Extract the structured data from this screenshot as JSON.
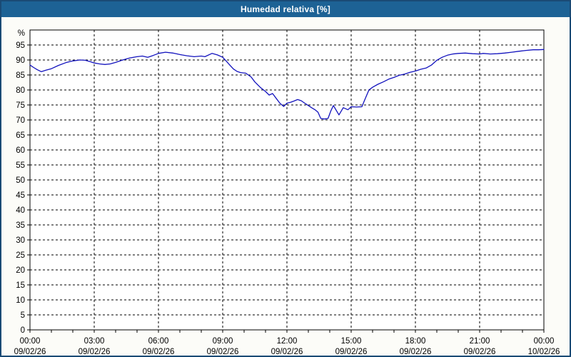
{
  "title": "Humedad relativa [%]",
  "colors": {
    "titlebar_bg": "#1d6295",
    "titlebar_text": "#ffffff",
    "window_bg": "#fcfcf8",
    "window_border": "#1a4a75",
    "plot_bg": "#ffffff",
    "plot_border": "#000000",
    "grid": "#000000",
    "axis_text": "#000000",
    "line": "#1212bd"
  },
  "chart_data": {
    "type": "line",
    "title": "Humedad relativa [%]",
    "y_unit_label": "%",
    "ylim": [
      0,
      100
    ],
    "y_tick_step": 5,
    "y_ticks": [
      0,
      5,
      10,
      15,
      20,
      25,
      30,
      35,
      40,
      45,
      50,
      55,
      60,
      65,
      70,
      75,
      80,
      85,
      90,
      95
    ],
    "x_range_hours": [
      0,
      24
    ],
    "x_minor_tick_hours": 1,
    "x_major_ticks": [
      {
        "hour": 0,
        "time": "00:00",
        "date": "09/02/26"
      },
      {
        "hour": 3,
        "time": "03:00",
        "date": "09/02/26"
      },
      {
        "hour": 6,
        "time": "06:00",
        "date": "09/02/26"
      },
      {
        "hour": 9,
        "time": "09:00",
        "date": "09/02/26"
      },
      {
        "hour": 12,
        "time": "12:00",
        "date": "09/02/26"
      },
      {
        "hour": 15,
        "time": "15:00",
        "date": "09/02/26"
      },
      {
        "hour": 18,
        "time": "18:00",
        "date": "09/02/26"
      },
      {
        "hour": 21,
        "time": "21:00",
        "date": "09/02/26"
      },
      {
        "hour": 24,
        "time": "00:00",
        "date": "10/02/26"
      }
    ],
    "grid": {
      "horizontal": "dashed every 5%",
      "vertical": "dashed every 3h"
    },
    "legend": "none",
    "series": [
      {
        "name": "Humedad relativa",
        "color": "#1212bd",
        "points_hour_value": [
          [
            0,
            88.3
          ],
          [
            0.17,
            87.5
          ],
          [
            0.33,
            86.8
          ],
          [
            0.53,
            86.1
          ],
          [
            0.75,
            86.6
          ],
          [
            1,
            87.1
          ],
          [
            1.33,
            88.2
          ],
          [
            1.67,
            89.1
          ],
          [
            2,
            89.7
          ],
          [
            2.33,
            90
          ],
          [
            2.58,
            89.9
          ],
          [
            2.83,
            89.4
          ],
          [
            3,
            89
          ],
          [
            3.25,
            88.7
          ],
          [
            3.5,
            88.5
          ],
          [
            3.75,
            88.7
          ],
          [
            4,
            89.2
          ],
          [
            4.33,
            90
          ],
          [
            4.67,
            90.7
          ],
          [
            5,
            91.1
          ],
          [
            5.25,
            91.3
          ],
          [
            5.5,
            90.9
          ],
          [
            5.75,
            91.5
          ],
          [
            6,
            92.2
          ],
          [
            6.33,
            92.6
          ],
          [
            6.67,
            92.3
          ],
          [
            7,
            91.8
          ],
          [
            7.33,
            91.4
          ],
          [
            7.67,
            91.1
          ],
          [
            8,
            91.3
          ],
          [
            8.17,
            91.1
          ],
          [
            8.5,
            92.2
          ],
          [
            8.75,
            91.7
          ],
          [
            9,
            90.9
          ],
          [
            9.17,
            89.6
          ],
          [
            9.33,
            88.3
          ],
          [
            9.5,
            87
          ],
          [
            9.67,
            86.2
          ],
          [
            9.83,
            85.8
          ],
          [
            10.08,
            85.6
          ],
          [
            10.33,
            84.3
          ],
          [
            10.5,
            82.7
          ],
          [
            10.75,
            80.9
          ],
          [
            11,
            79.5
          ],
          [
            11.17,
            78.3
          ],
          [
            11.33,
            78.8
          ],
          [
            11.5,
            77.2
          ],
          [
            11.67,
            75.6
          ],
          [
            11.85,
            74.5
          ],
          [
            12,
            75.6
          ],
          [
            12.17,
            75.9
          ],
          [
            12.33,
            76.3
          ],
          [
            12.5,
            76.8
          ],
          [
            12.67,
            76.4
          ],
          [
            12.83,
            75.6
          ],
          [
            13,
            74.8
          ],
          [
            13.17,
            74
          ],
          [
            13.33,
            73.3
          ],
          [
            13.45,
            72.6
          ],
          [
            13.58,
            70.5
          ],
          [
            13.75,
            70.3
          ],
          [
            13.92,
            70.5
          ],
          [
            14.05,
            73
          ],
          [
            14.17,
            74.8
          ],
          [
            14.43,
            71.7
          ],
          [
            14.63,
            74.1
          ],
          [
            14.85,
            73.4
          ],
          [
            15,
            74.4
          ],
          [
            15.25,
            74.3
          ],
          [
            15.5,
            74.4
          ],
          [
            15.67,
            77.3
          ],
          [
            15.83,
            80
          ],
          [
            16,
            80.9
          ],
          [
            16.25,
            81.9
          ],
          [
            16.5,
            82.7
          ],
          [
            16.75,
            83.6
          ],
          [
            17,
            84.2
          ],
          [
            17.25,
            84.9
          ],
          [
            17.5,
            85.3
          ],
          [
            17.75,
            85.9
          ],
          [
            18,
            86.3
          ],
          [
            18.25,
            86.9
          ],
          [
            18.5,
            87.3
          ],
          [
            18.75,
            88.3
          ],
          [
            19,
            89.9
          ],
          [
            19.25,
            90.9
          ],
          [
            19.5,
            91.6
          ],
          [
            19.75,
            92
          ],
          [
            20,
            92.2
          ],
          [
            20.33,
            92.3
          ],
          [
            20.67,
            92.1
          ],
          [
            21,
            92
          ],
          [
            21.17,
            92.2
          ],
          [
            21.5,
            92
          ],
          [
            21.83,
            92.1
          ],
          [
            22.17,
            92.3
          ],
          [
            22.5,
            92.6
          ],
          [
            22.83,
            92.9
          ],
          [
            23.17,
            93.2
          ],
          [
            23.5,
            93.4
          ],
          [
            23.75,
            93.4
          ],
          [
            24,
            93.5
          ]
        ]
      }
    ]
  }
}
